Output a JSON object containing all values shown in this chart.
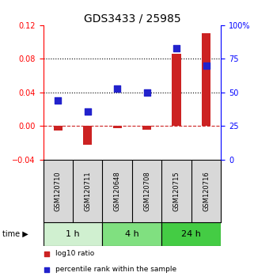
{
  "title": "GDS3433 / 25985",
  "samples": [
    "GSM120710",
    "GSM120711",
    "GSM120648",
    "GSM120708",
    "GSM120715",
    "GSM120716"
  ],
  "time_groups": [
    {
      "label": "1 h",
      "start": 0,
      "end": 2,
      "color": "#d0f0d0"
    },
    {
      "label": "4 h",
      "start": 2,
      "end": 4,
      "color": "#80e080"
    },
    {
      "label": "24 h",
      "start": 4,
      "end": 6,
      "color": "#44cc44"
    }
  ],
  "log10_ratio": [
    -0.005,
    -0.022,
    -0.003,
    -0.004,
    0.086,
    0.11
  ],
  "percentile_rank": [
    44,
    36,
    53,
    50,
    83,
    70
  ],
  "left_ylim": [
    -0.04,
    0.12
  ],
  "right_ylim": [
    0,
    100
  ],
  "left_yticks": [
    -0.04,
    0,
    0.04,
    0.08,
    0.12
  ],
  "right_yticks": [
    0,
    25,
    50,
    75,
    100
  ],
  "right_yticklabels": [
    "0",
    "25",
    "50",
    "75",
    "100%"
  ],
  "hlines": [
    0.04,
    0.08
  ],
  "bar_color": "#cc2222",
  "scatter_color": "#2222cc",
  "zero_line_color": "#cc2222",
  "sample_bg": "#d8d8d8",
  "plot_bg": "#ffffff",
  "title_color_left": "#cc0000",
  "title_color_right": "#0000cc"
}
